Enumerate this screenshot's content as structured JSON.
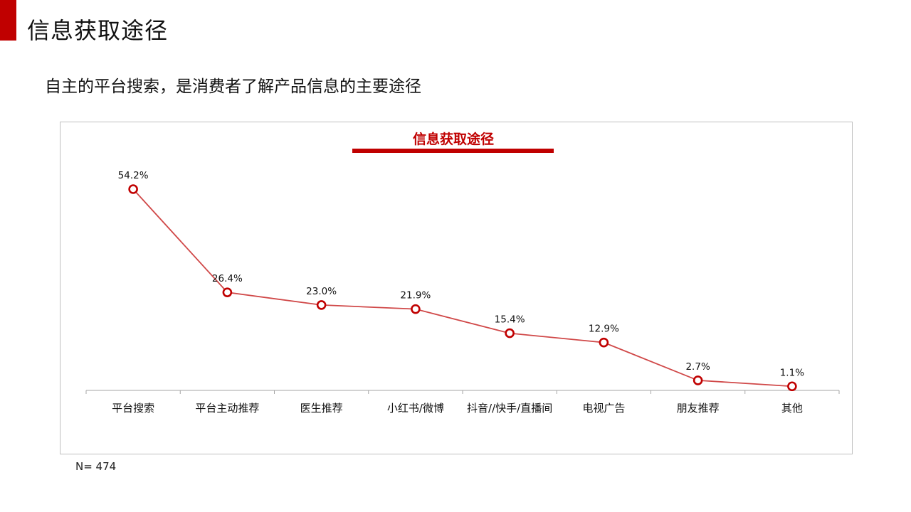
{
  "page": {
    "title": "信息获取途径",
    "subtitle": "自主的平台搜索，是消费者了解产品信息的主要途径",
    "note": "N= 474"
  },
  "colors": {
    "accent": "#c00000",
    "line": "#d04848",
    "axis": "#a6a6a6",
    "text": "#111111"
  },
  "chart_data": {
    "type": "line",
    "title": "信息获取途径",
    "xlabel": "",
    "ylabel": "",
    "categories": [
      "平台搜索",
      "平台主动推荐",
      "医生推荐",
      "小红书/微博",
      "抖音//快手/直播间",
      "电视广告",
      "朋友推荐",
      "其他"
    ],
    "series": [
      {
        "values": [
          54.2,
          26.4,
          23.0,
          21.9,
          15.4,
          12.9,
          2.7,
          1.1
        ],
        "labels": [
          "54.2%",
          "26.4%",
          "23.0%",
          "21.9%",
          "15.4%",
          "12.9%",
          "2.7%",
          "1.1%"
        ]
      }
    ],
    "ylim": [
      0,
      54.2
    ],
    "grid": false,
    "legend": "none",
    "markers": "hollow-circle"
  }
}
